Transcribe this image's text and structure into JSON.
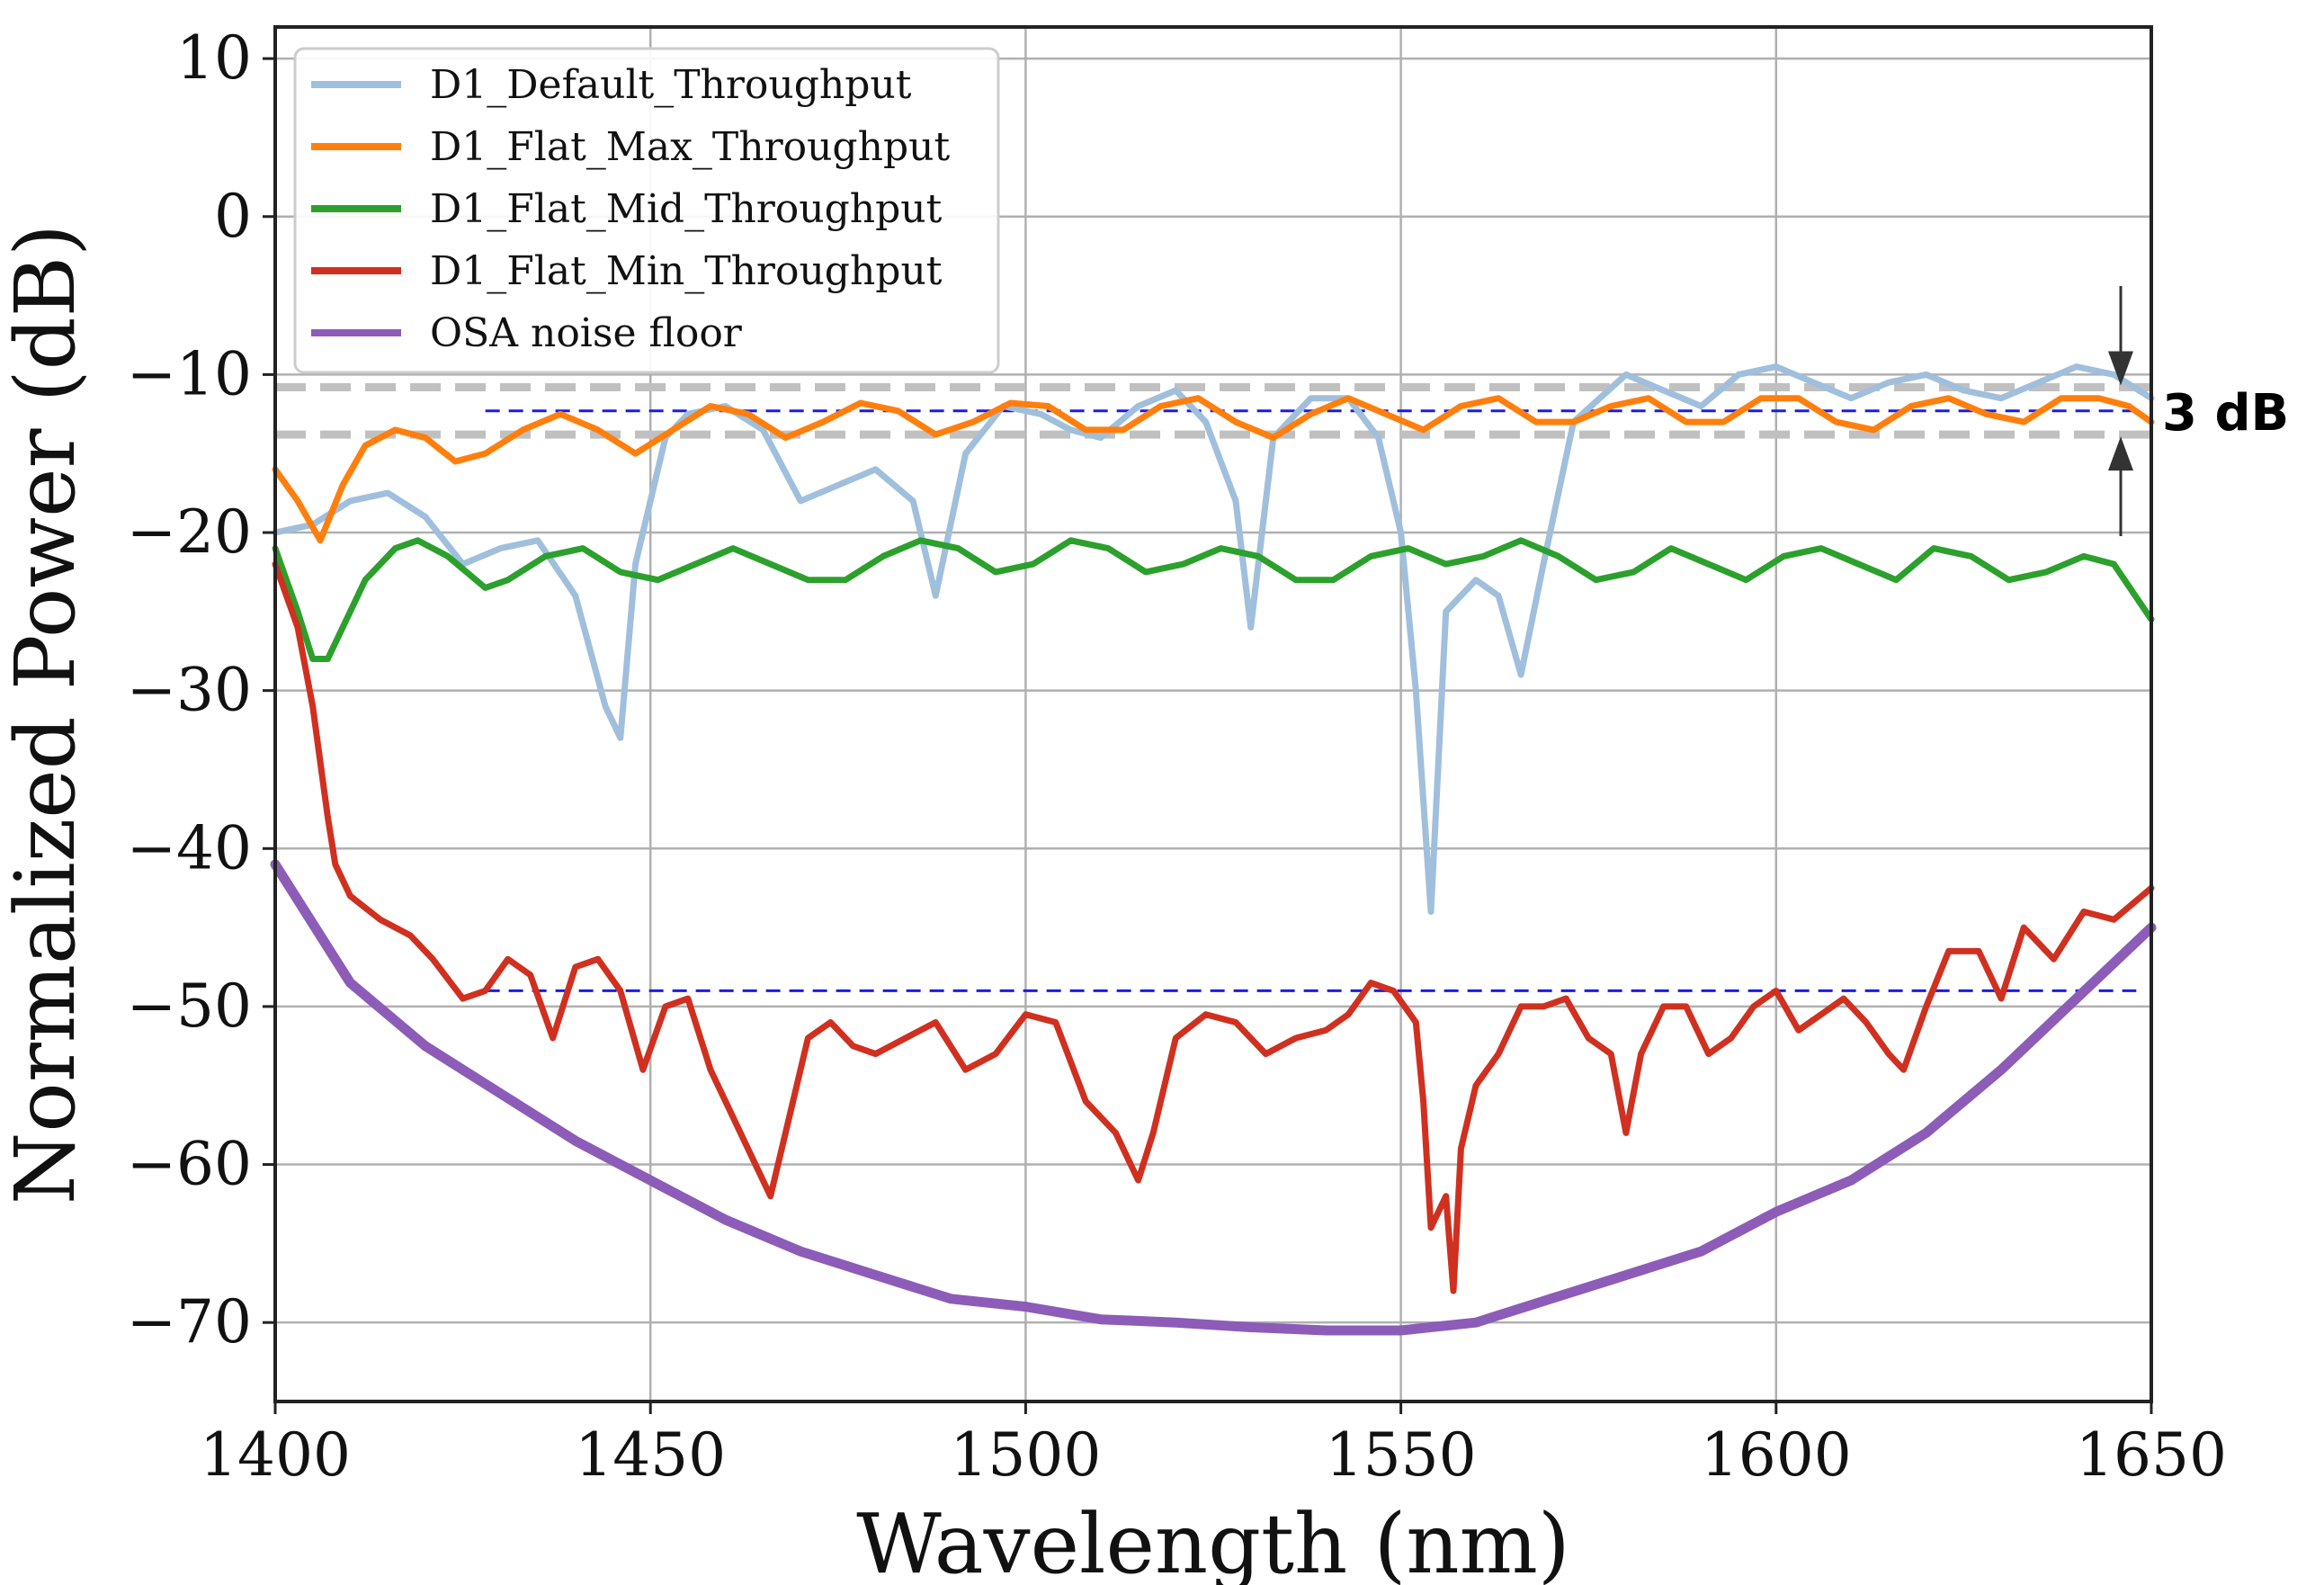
{
  "chart_data": {
    "type": "line",
    "title": "",
    "xlabel": "Wavelength (nm)",
    "ylabel": "Normalized Power (dB)",
    "xlim": [
      1400,
      1650
    ],
    "ylim": [
      -75,
      12
    ],
    "xticks": [
      1400,
      1450,
      1500,
      1550,
      1600,
      1650
    ],
    "xtick_labels": [
      "1400",
      "1450",
      "1500",
      "1550",
      "1600",
      "1650"
    ],
    "yticks": [
      10,
      0,
      -10,
      -20,
      -30,
      -40,
      -50,
      -60,
      -70
    ],
    "ytick_labels": [
      "10",
      "0",
      "−10",
      "−20",
      "−30",
      "−40",
      "−50",
      "−60",
      "−70"
    ],
    "grid": true,
    "legend_position": "top-left",
    "series": [
      {
        "name": "D1_Default_Throughput",
        "color": "#9fbfdc",
        "x": [
          1400,
          1405,
          1410,
          1415,
          1420,
          1425,
          1430,
          1435,
          1440,
          1444,
          1446,
          1448,
          1452,
          1455,
          1460,
          1465,
          1470,
          1475,
          1480,
          1485,
          1488,
          1492,
          1497,
          1502,
          1506,
          1510,
          1515,
          1520,
          1524,
          1528,
          1530,
          1533,
          1538,
          1543,
          1547,
          1550,
          1552,
          1554,
          1556,
          1560,
          1563,
          1566,
          1569,
          1573,
          1580,
          1585,
          1590,
          1595,
          1600,
          1605,
          1610,
          1615,
          1620,
          1625,
          1630,
          1635,
          1640,
          1645,
          1650
        ],
        "y": [
          -20,
          -19.5,
          -18,
          -17.5,
          -19,
          -22,
          -21,
          -20.5,
          -24,
          -31,
          -33,
          -22,
          -14,
          -12.5,
          -12,
          -13.5,
          -18,
          -17,
          -16,
          -18,
          -24,
          -15,
          -12,
          -12.5,
          -13.5,
          -14,
          -12,
          -11,
          -13,
          -18,
          -26,
          -14,
          -11.5,
          -11.5,
          -14,
          -20,
          -30,
          -44,
          -25,
          -23,
          -24,
          -29,
          -22,
          -13,
          -10,
          -11,
          -12,
          -10,
          -9.5,
          -10.5,
          -11.5,
          -10.5,
          -10,
          -11,
          -11.5,
          -10.5,
          -9.5,
          -10,
          -11.5
        ]
      },
      {
        "name": "D1_Flat_Max_Throughput",
        "color": "#ff7f0e",
        "x": [
          1400,
          1403,
          1406,
          1409,
          1412,
          1416,
          1420,
          1424,
          1428,
          1433,
          1438,
          1443,
          1448,
          1453,
          1458,
          1463,
          1468,
          1473,
          1478,
          1483,
          1488,
          1493,
          1498,
          1503,
          1508,
          1513,
          1518,
          1523,
          1528,
          1533,
          1538,
          1543,
          1548,
          1553,
          1558,
          1563,
          1568,
          1573,
          1578,
          1583,
          1588,
          1593,
          1598,
          1603,
          1608,
          1613,
          1618,
          1623,
          1628,
          1633,
          1638,
          1643,
          1647,
          1650
        ],
        "y": [
          -16,
          -18,
          -20.5,
          -17,
          -14.5,
          -13.5,
          -14,
          -15.5,
          -15,
          -13.5,
          -12.5,
          -13.5,
          -15,
          -13.5,
          -12,
          -12.5,
          -14,
          -13,
          -11.8,
          -12.3,
          -13.8,
          -13,
          -11.8,
          -12,
          -13.5,
          -13.5,
          -12,
          -11.5,
          -13,
          -14,
          -12.5,
          -11.5,
          -12.5,
          -13.5,
          -12,
          -11.5,
          -13,
          -13,
          -12,
          -11.5,
          -13,
          -13,
          -11.5,
          -11.5,
          -13,
          -13.5,
          -12,
          -11.5,
          -12.5,
          -13,
          -11.5,
          -11.5,
          -12,
          -13
        ]
      },
      {
        "name": "D1_Flat_Mid_Throughput",
        "color": "#2ca02c",
        "x": [
          1400,
          1403,
          1405,
          1407,
          1409,
          1412,
          1416,
          1419,
          1423,
          1428,
          1431,
          1436,
          1441,
          1446,
          1451,
          1456,
          1461,
          1466,
          1471,
          1476,
          1481,
          1486,
          1491,
          1496,
          1501,
          1506,
          1511,
          1516,
          1521,
          1526,
          1531,
          1536,
          1541,
          1546,
          1551,
          1556,
          1561,
          1566,
          1571,
          1576,
          1581,
          1586,
          1591,
          1596,
          1601,
          1606,
          1611,
          1616,
          1621,
          1626,
          1631,
          1636,
          1641,
          1645,
          1650
        ],
        "y": [
          -21,
          -25,
          -28,
          -28,
          -26,
          -23,
          -21,
          -20.5,
          -21.5,
          -23.5,
          -23,
          -21.5,
          -21,
          -22.5,
          -23,
          -22,
          -21,
          -22,
          -23,
          -23,
          -21.5,
          -20.5,
          -21,
          -22.5,
          -22,
          -20.5,
          -21,
          -22.5,
          -22,
          -21,
          -21.5,
          -23,
          -23,
          -21.5,
          -21,
          -22,
          -21.5,
          -20.5,
          -21.5,
          -23,
          -22.5,
          -21,
          -22,
          -23,
          -21.5,
          -21,
          -22,
          -23,
          -21,
          -21.5,
          -23,
          -22.5,
          -21.5,
          -22,
          -25.5
        ]
      },
      {
        "name": "D1_Flat_Min_Throughput",
        "color": "#d03020",
        "x": [
          1400,
          1403,
          1405,
          1407,
          1408,
          1410,
          1414,
          1418,
          1421,
          1425,
          1428,
          1431,
          1434,
          1437,
          1440,
          1443,
          1446,
          1449,
          1452,
          1455,
          1458,
          1461,
          1464,
          1466,
          1468,
          1471,
          1474,
          1477,
          1480,
          1484,
          1488,
          1492,
          1496,
          1500,
          1504,
          1508,
          1512,
          1515,
          1517,
          1520,
          1524,
          1528,
          1532,
          1536,
          1540,
          1543,
          1546,
          1549,
          1552,
          1553,
          1554,
          1556,
          1557,
          1558,
          1560,
          1563,
          1566,
          1569,
          1572,
          1575,
          1578,
          1580,
          1582,
          1585,
          1588,
          1591,
          1594,
          1597,
          1600,
          1603,
          1606,
          1609,
          1612,
          1615,
          1617,
          1620,
          1623,
          1627,
          1630,
          1633,
          1637,
          1641,
          1645,
          1650
        ],
        "y": [
          -22,
          -26,
          -31,
          -38,
          -41,
          -43,
          -44.5,
          -45.5,
          -47,
          -49.5,
          -49,
          -47,
          -48,
          -52,
          -47.5,
          -47,
          -49,
          -54,
          -50,
          -49.5,
          -54,
          -57,
          -60,
          -62,
          -58,
          -52,
          -51,
          -52.5,
          -53,
          -52,
          -51,
          -54,
          -53,
          -50.5,
          -51,
          -56,
          -58,
          -61,
          -58,
          -52,
          -50.5,
          -51,
          -53,
          -52,
          -51.5,
          -50.5,
          -48.5,
          -49,
          -51,
          -56,
          -64,
          -62,
          -68,
          -59,
          -55,
          -53,
          -50,
          -50,
          -49.5,
          -52,
          -53,
          -58,
          -53,
          -50,
          -50,
          -53,
          -52,
          -50,
          -49,
          -51.5,
          -50.5,
          -49.5,
          -51,
          -53,
          -54,
          -50,
          -46.5,
          -46.5,
          -49.5,
          -45,
          -47,
          -44,
          -44.5,
          -42.5
        ]
      },
      {
        "name": "OSA noise floor",
        "color": "#8c5cb8",
        "x": [
          1400,
          1410,
          1420,
          1430,
          1440,
          1450,
          1460,
          1470,
          1480,
          1490,
          1500,
          1510,
          1520,
          1530,
          1540,
          1550,
          1560,
          1570,
          1580,
          1590,
          1600,
          1610,
          1620,
          1630,
          1640,
          1650
        ],
        "y": [
          -41,
          -48.5,
          -52.5,
          -55.5,
          -58.5,
          -61,
          -63.5,
          -65.5,
          -67,
          -68.5,
          -69,
          -69.8,
          -70,
          -70.3,
          -70.5,
          -70.5,
          -70,
          -68.5,
          -67,
          -65.5,
          -63,
          -61,
          -58,
          -54,
          -49.5,
          -45
        ]
      }
    ],
    "annotations": {
      "upper_dashed_levels": [
        -10.8,
        -13.8
      ],
      "upper_blue_level": -12.3,
      "lower_blue_level": -49,
      "bracket_label": "3  dB"
    }
  }
}
